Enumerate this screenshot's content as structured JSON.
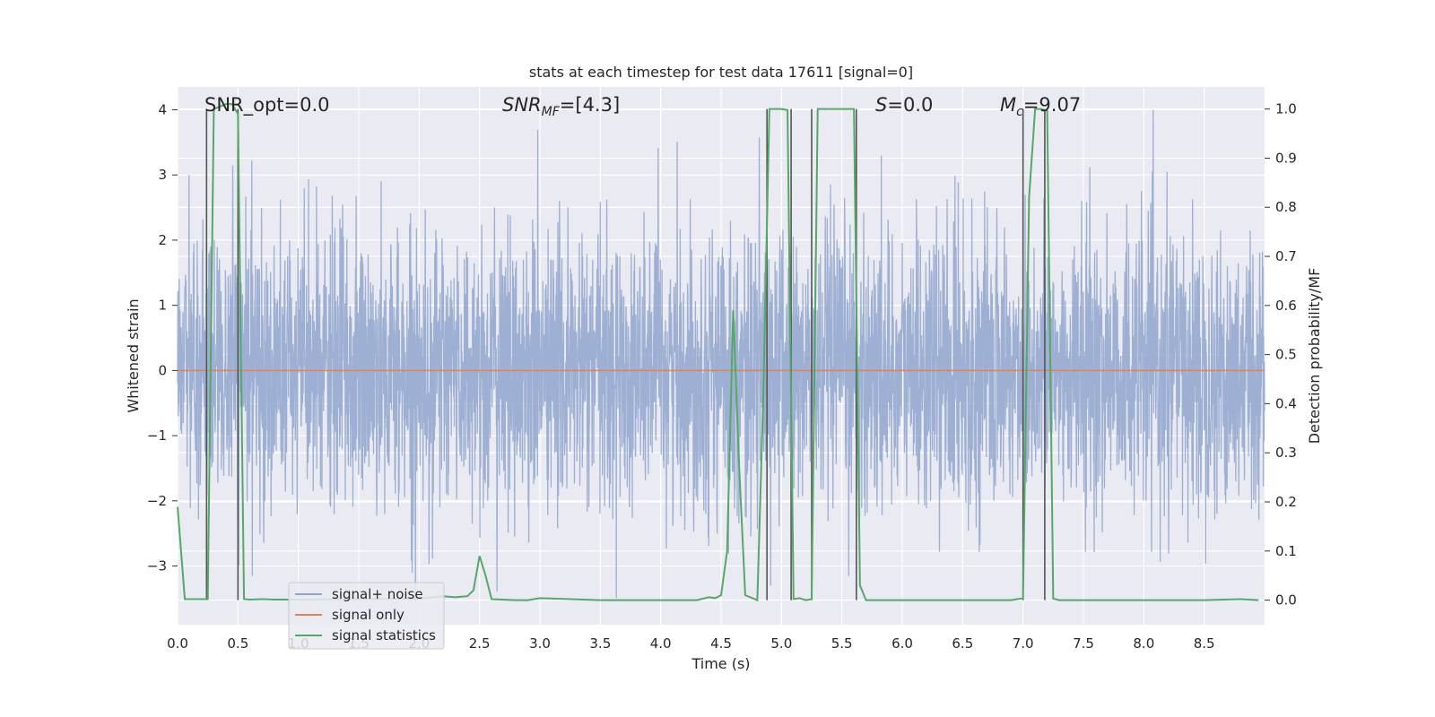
{
  "chart_data": {
    "type": "line",
    "title": "stats at each timestep for test data 17611 [signal=0]",
    "xlabel": "Time (s)",
    "ylabel_left": "Whitened strain",
    "ylabel_right": "Detection probability/MF",
    "xlim": [
      0,
      9.0
    ],
    "ylim_left": [
      -3.9,
      4.35
    ],
    "ylim_right": [
      -0.05,
      1.045
    ],
    "x_ticks": [
      "0.0",
      "0.5",
      "1.0",
      "1.5",
      "2.0",
      "2.5",
      "3.0",
      "3.5",
      "4.0",
      "4.5",
      "5.0",
      "5.5",
      "6.0",
      "6.5",
      "7.0",
      "7.5",
      "8.0",
      "8.5"
    ],
    "y_ticks_left": [
      "4",
      "3",
      "2",
      "1",
      "0",
      "−1",
      "−2",
      "−3"
    ],
    "y_ticks_right": [
      "1.0",
      "0.9",
      "0.8",
      "0.7",
      "0.6",
      "0.5",
      "0.4",
      "0.3",
      "0.2",
      "0.1",
      "0.0"
    ],
    "annotations": {
      "snr_opt": "SNR_opt=0.0",
      "snr_mf_main": "SNR",
      "snr_mf_sub": "MF",
      "snr_mf_value": "=[4.3]",
      "s_main": "S",
      "s_value": "=0.0",
      "mc_main": "M",
      "mc_sub": "c",
      "mc_value": "=9.07"
    },
    "legend": {
      "position": "lower-left",
      "entries": [
        "signal+ noise",
        "signal only",
        "signal statistics"
      ]
    },
    "series": [
      {
        "name": "signal+ noise",
        "axis": "left",
        "color": "#8fa4cc",
        "description": "whitened strain noise, approx. Gaussian, std ~1, peaks near ±4, 8192 samples over 0-9 s",
        "noise_std": 1.0,
        "noise_peak": 4.0
      },
      {
        "name": "signal only",
        "axis": "left",
        "color": "#dd8452",
        "x": [
          0,
          9.0
        ],
        "y": [
          0,
          0
        ]
      },
      {
        "name": "signal statistics",
        "axis": "right",
        "color": "#55a868",
        "x": [
          0.0,
          0.06,
          0.25,
          0.3,
          0.4,
          0.45,
          0.5,
          0.55,
          0.6,
          0.7,
          0.8,
          1.0,
          1.5,
          2.0,
          2.2,
          2.3,
          2.4,
          2.45,
          2.5,
          2.55,
          2.6,
          2.8,
          2.9,
          3.0,
          3.5,
          4.0,
          4.3,
          4.4,
          4.45,
          4.5,
          4.55,
          4.6,
          4.65,
          4.7,
          4.8,
          4.85,
          4.9,
          4.95,
          5.0,
          5.05,
          5.1,
          5.15,
          5.2,
          5.25,
          5.3,
          5.4,
          5.5,
          5.6,
          5.65,
          5.7,
          6.0,
          6.5,
          6.9,
          7.0,
          7.05,
          7.1,
          7.15,
          7.2,
          7.25,
          7.3,
          7.5,
          8.0,
          8.5,
          8.8,
          8.95
        ],
        "y": [
          0.19,
          0.002,
          0.002,
          1.0,
          1.01,
          1.01,
          0.99,
          0.002,
          0.001,
          0.002,
          0.001,
          0.001,
          0.002,
          0.003,
          0.008,
          0.006,
          0.008,
          0.02,
          0.09,
          0.05,
          0.002,
          0.0,
          0.0,
          0.004,
          0.0,
          0.0,
          0.0,
          0.006,
          0.004,
          0.01,
          0.1,
          0.59,
          0.27,
          0.01,
          0.0,
          0.42,
          1.0,
          1.0,
          1.0,
          0.998,
          0.002,
          0.004,
          0.0,
          0.002,
          1.0,
          1.0,
          1.0,
          1.0,
          0.03,
          0.0,
          0.0,
          0.0,
          0.0,
          0.004,
          0.82,
          1.0,
          1.0,
          0.996,
          0.003,
          0.0,
          0.0,
          0.0,
          0.0,
          0.002,
          0.0
        ]
      }
    ],
    "vertical_markers_x": [
      0.24,
      0.5,
      4.88,
      5.08,
      5.25,
      5.62,
      7.0,
      7.18
    ],
    "colors": {
      "plot_bg": "#eaeaf2",
      "grid": "#ffffff",
      "noise": "#8fa4cc",
      "signal": "#dd8452",
      "stats": "#55a868",
      "markers": "#555555"
    }
  }
}
